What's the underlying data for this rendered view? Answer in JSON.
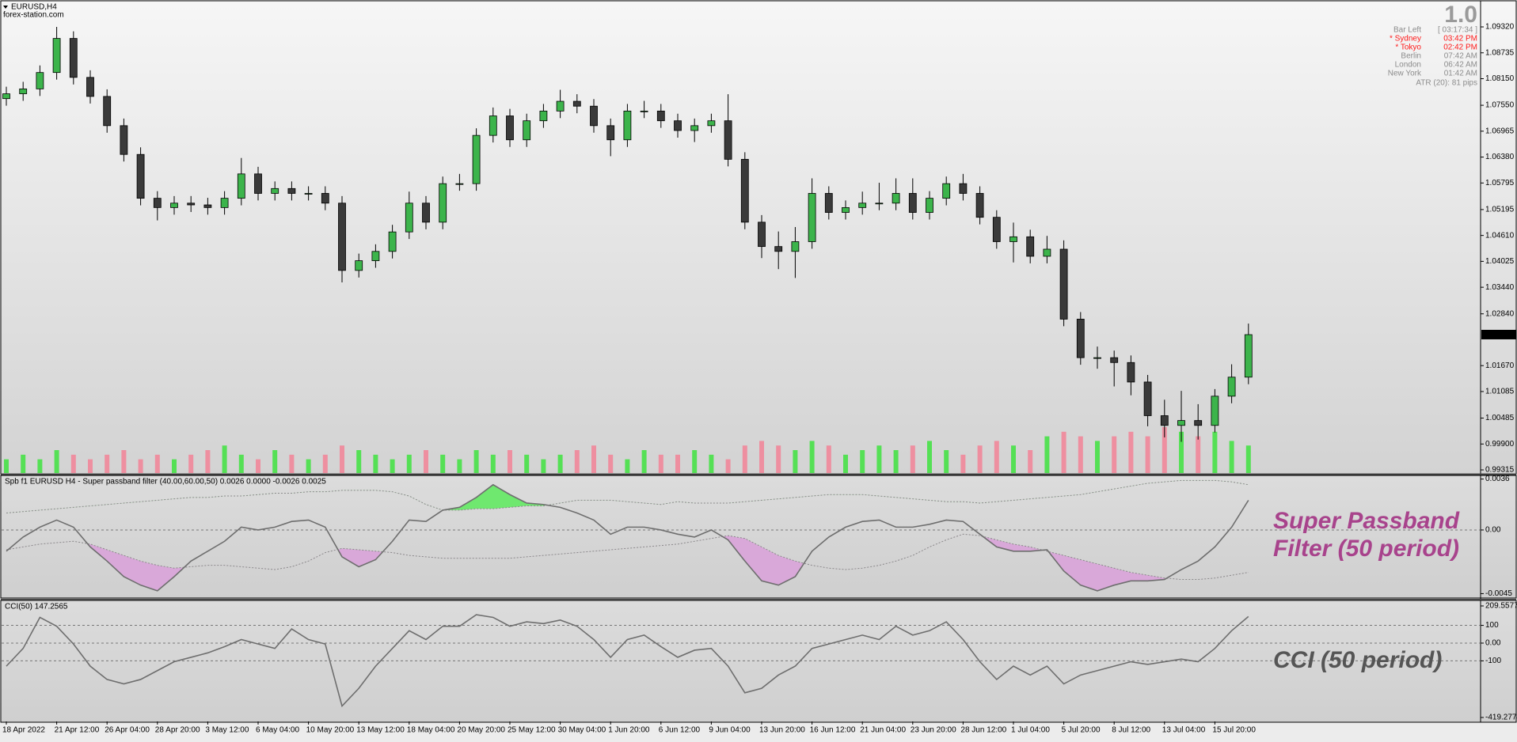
{
  "window": {
    "title": "EURUSD,H4",
    "watermark": "forex-station.com"
  },
  "info_box": {
    "version": "1.0",
    "rows": [
      {
        "label": "Bar Left",
        "time": "[ 03:17:34 ]",
        "color": "#8c8c8c"
      },
      {
        "label": "* Sydney",
        "time": "03:42 PM",
        "color": "#ff1a1a"
      },
      {
        "label": "* Tokyo",
        "time": "02:42 PM",
        "color": "#ff1a1a"
      },
      {
        "label": "Berlin",
        "time": "07:42 AM",
        "color": "#8c8c8c"
      },
      {
        "label": "London",
        "time": "06:42 AM",
        "color": "#8c8c8c"
      },
      {
        "label": "New York",
        "time": "01:42 AM",
        "color": "#8c8c8c"
      }
    ],
    "atr": "ATR (20): 81 pips"
  },
  "chart_data": [
    {
      "type": "candlestick",
      "up_color": "#3cb44b",
      "down_color": "#3a3a3a",
      "wick_color": "#000000",
      "ylim": [
        0.99244,
        1.09892
      ],
      "yticks": [
        {
          "value": 1.0932,
          "label": "1.09320"
        },
        1.08735,
        {
          "value": 1.0815,
          "label": "1.08150"
        },
        {
          "value": 1.0755,
          "label": "1.07550"
        },
        1.06965,
        {
          "value": 1.0638,
          "label": "1.06380"
        },
        1.05795,
        1.05195,
        {
          "value": 1.0461,
          "label": "1.04610"
        },
        1.04025,
        {
          "value": 1.0344,
          "label": "1.03440"
        },
        {
          "value": 1.0284,
          "label": "1.02840"
        },
        {
          "value": 1.0167,
          "label": "1.01670"
        },
        1.01085,
        1.00485,
        {
          "value": 0.999,
          "label": "0.99900"
        },
        0.99315
      ],
      "current_price": 1.02371,
      "open": [
        1.077,
        1.0781,
        1.0792,
        1.0829,
        1.0906,
        1.0818,
        1.0775,
        1.0709,
        1.0644,
        1.0545,
        1.0524,
        1.0534,
        1.053,
        1.0524,
        1.0545,
        1.06,
        1.0556,
        1.0567,
        1.0556,
        1.0556,
        1.0534,
        1.0382,
        1.0404,
        1.0425,
        1.0469,
        1.0534,
        1.0491,
        1.0578,
        1.0578,
        1.0687,
        1.0731,
        1.0677,
        1.072,
        1.0742,
        1.0764,
        1.0753,
        1.0709,
        1.0677,
        1.0742,
        1.0742,
        1.072,
        1.0698,
        1.0709,
        1.072,
        1.0633,
        1.0491,
        1.0436,
        1.0425,
        1.0447,
        1.0556,
        1.0513,
        1.0524,
        1.0534,
        1.0534,
        1.0556,
        1.0513,
        1.0545,
        1.0578,
        1.0556,
        1.0502,
        1.0447,
        1.0458,
        1.0414,
        1.043,
        1.0272,
        1.0185,
        1.0185,
        1.0174,
        1.013,
        1.0054,
        1.0032,
        1.0043,
        1.0032,
        1.0098,
        1.0141
      ],
      "high": [
        1.0797,
        1.0808,
        1.0845,
        1.0932,
        1.0922,
        1.0834,
        1.0791,
        1.0725,
        1.066,
        1.0561,
        1.055,
        1.055,
        1.0546,
        1.0561,
        1.0636,
        1.0616,
        1.0583,
        1.0583,
        1.0572,
        1.0572,
        1.055,
        1.042,
        1.0441,
        1.0485,
        1.056,
        1.055,
        1.0594,
        1.06,
        1.0703,
        1.075,
        1.0747,
        1.0736,
        1.0758,
        1.079,
        1.078,
        1.0769,
        1.0725,
        1.0758,
        1.0765,
        1.0758,
        1.0736,
        1.0725,
        1.0736,
        1.078,
        1.0649,
        1.0507,
        1.047,
        1.048,
        1.059,
        1.0572,
        1.054,
        1.056,
        1.058,
        1.059,
        1.059,
        1.0561,
        1.0594,
        1.06,
        1.0572,
        1.0518,
        1.049,
        1.0474,
        1.046,
        1.045,
        1.0288,
        1.021,
        1.0201,
        1.019,
        1.0146,
        1.009,
        1.011,
        1.008,
        1.0114,
        1.017,
        1.0262
      ],
      "low": [
        1.0754,
        1.0765,
        1.0776,
        1.0813,
        1.0802,
        1.0759,
        1.0693,
        1.0628,
        1.0529,
        1.0495,
        1.0508,
        1.0514,
        1.0508,
        1.0508,
        1.0529,
        1.054,
        1.054,
        1.054,
        1.054,
        1.0518,
        1.0355,
        1.0366,
        1.0388,
        1.0409,
        1.0453,
        1.0475,
        1.0475,
        1.0562,
        1.0562,
        1.0671,
        1.0661,
        1.0661,
        1.0704,
        1.0726,
        1.0737,
        1.0693,
        1.064,
        1.0661,
        1.0726,
        1.0704,
        1.0682,
        1.0672,
        1.0693,
        1.0617,
        1.0475,
        1.041,
        1.0385,
        1.0365,
        1.0431,
        1.0497,
        1.0497,
        1.0508,
        1.0518,
        1.0518,
        1.0497,
        1.0497,
        1.0529,
        1.054,
        1.0486,
        1.0431,
        1.04,
        1.0398,
        1.0398,
        1.0256,
        1.0169,
        1.016,
        1.012,
        1.01,
        1.003,
        1.0005,
        0.9995,
        1.0,
        1.0016,
        1.0082,
        1.0125
      ],
      "close": [
        1.0781,
        1.0792,
        1.0829,
        1.0906,
        1.0818,
        1.0775,
        1.0709,
        1.0644,
        1.0545,
        1.0524,
        1.0534,
        1.053,
        1.0524,
        1.0545,
        1.06,
        1.0556,
        1.0567,
        1.0556,
        1.0556,
        1.0534,
        1.0382,
        1.0404,
        1.0425,
        1.0469,
        1.0534,
        1.0491,
        1.0578,
        1.0578,
        1.0687,
        1.0731,
        1.0677,
        1.072,
        1.0742,
        1.0764,
        1.0753,
        1.0709,
        1.0677,
        1.0742,
        1.0742,
        1.072,
        1.0698,
        1.0709,
        1.072,
        1.0633,
        1.0491,
        1.0436,
        1.0425,
        1.0447,
        1.0556,
        1.0513,
        1.0524,
        1.0534,
        1.0534,
        1.0556,
        1.0513,
        1.0545,
        1.0578,
        1.0556,
        1.0502,
        1.0447,
        1.0458,
        1.0414,
        1.043,
        1.0272,
        1.0185,
        1.0185,
        1.0174,
        1.013,
        1.0054,
        1.0032,
        1.0043,
        1.0032,
        1.0098,
        1.0141,
        1.0237
      ],
      "volume": {
        "up_color": "#55e055",
        "down_color": "#ee8fa0",
        "values": [
          3,
          4,
          3,
          5,
          4,
          3,
          4,
          5,
          3,
          4,
          3,
          4,
          5,
          6,
          4,
          3,
          5,
          4,
          3,
          4,
          6,
          5,
          4,
          3,
          4,
          5,
          4,
          3,
          5,
          4,
          5,
          4,
          3,
          4,
          5,
          6,
          4,
          3,
          5,
          4,
          4,
          5,
          4,
          3,
          6,
          7,
          6,
          5,
          7,
          6,
          4,
          5,
          6,
          5,
          6,
          7,
          5,
          4,
          6,
          7,
          6,
          5,
          8,
          9,
          8,
          7,
          8,
          9,
          8,
          10,
          9,
          8,
          9,
          7,
          6
        ]
      }
    },
    {
      "type": "line",
      "title": "Spb f1 EURUSD H4 - Super passband filter (40.00,60.00,50) 0.0026 0.0000 -0.0026 0.0025",
      "annotation": [
        "Super Passband",
        "Filter (50 period)"
      ],
      "annotation_color": "#a8438c",
      "ylim": [
        -0.0047,
        0.0038
      ],
      "yticks": [
        0.0036,
        {
          "value": 0,
          "label": "0.00"
        },
        -0.0045
      ],
      "level_lines": true,
      "series": [
        {
          "color": "#6e6e6e",
          "values": [
            -0.0015,
            -0.0005,
            0.0002,
            0.0007,
            0.0002,
            -0.0012,
            -0.0022,
            -0.0033,
            -0.0039,
            -0.0043,
            -0.0033,
            -0.0022,
            -0.0015,
            -0.0008,
            0.0002,
            0,
            0.0002,
            0.0006,
            0.0007,
            0.0002,
            -0.0019,
            -0.0026,
            -0.0021,
            -0.0008,
            0.0007,
            0.0006,
            0.0014,
            0.0016,
            0.0023,
            0.0032,
            0.0025,
            0.0019,
            0.0018,
            0.0016,
            0.0012,
            0.0007,
            -0.0003,
            0.0002,
            0.0002,
            0,
            -0.0003,
            -0.0005,
            0,
            -0.0007,
            -0.0022,
            -0.0036,
            -0.0039,
            -0.0033,
            -0.0015,
            -0.0005,
            0.0002,
            0.0006,
            0.0007,
            0.0002,
            0.0002,
            0.0004,
            0.0007,
            0.0006,
            -0.0003,
            -0.0012,
            -0.0015,
            -0.0015,
            -0.0014,
            -0.0029,
            -0.0039,
            -0.0043,
            -0.0039,
            -0.0036,
            -0.0036,
            -0.0035,
            -0.0028,
            -0.0022,
            -0.0012,
            0.0002,
            0.0021
          ]
        },
        {
          "color": "#8a8a8a",
          "dashed": true,
          "fill": "above",
          "fill_color": "#6fe86f",
          "values": [
            0.0012,
            0.0013,
            0.0014,
            0.0015,
            0.0016,
            0.0017,
            0.0018,
            0.0019,
            0.002,
            0.0021,
            0.0022,
            0.0023,
            0.0023,
            0.0024,
            0.0024,
            0.0025,
            0.0026,
            0.0026,
            0.0027,
            0.0027,
            0.0028,
            0.0028,
            0.0028,
            0.0027,
            0.0024,
            0.0018,
            0.0014,
            0.0014,
            0.0015,
            0.0015,
            0.0016,
            0.0017,
            0.0017,
            0.0019,
            0.0021,
            0.0021,
            0.0021,
            0.002,
            0.0019,
            0.0018,
            0.002,
            0.0019,
            0.0019,
            0.0019,
            0.002,
            0.0021,
            0.0022,
            0.0023,
            0.0024,
            0.0025,
            0.0025,
            0.0025,
            0.0024,
            0.0023,
            0.0022,
            0.0021,
            0.002,
            0.002,
            0.0019,
            0.002,
            0.0021,
            0.0022,
            0.0023,
            0.0024,
            0.0025,
            0.0027,
            0.0029,
            0.0031,
            0.0033,
            0.0034,
            0.0035,
            0.0035,
            0.0035,
            0.0034,
            0.0032
          ]
        },
        {
          "color": "#8a8a8a",
          "dashed": true,
          "fill": "below",
          "fill_color": "#d9a8d9",
          "values": [
            -0.0014,
            -0.0012,
            -0.001,
            -0.0009,
            -0.0008,
            -0.001,
            -0.0014,
            -0.0018,
            -0.0022,
            -0.0025,
            -0.0027,
            -0.0026,
            -0.0025,
            -0.0025,
            -0.0026,
            -0.0027,
            -0.0028,
            -0.0026,
            -0.0022,
            -0.0016,
            -0.0013,
            -0.0014,
            -0.0015,
            -0.0016,
            -0.0018,
            -0.0019,
            -0.002,
            -0.002,
            -0.002,
            -0.002,
            -0.002,
            -0.0019,
            -0.0018,
            -0.0017,
            -0.0016,
            -0.0015,
            -0.0014,
            -0.0013,
            -0.0012,
            -0.0011,
            -0.001,
            -0.0008,
            -0.0006,
            -0.0004,
            -0.0006,
            -0.0012,
            -0.0018,
            -0.0022,
            -0.0025,
            -0.0027,
            -0.0028,
            -0.0027,
            -0.0025,
            -0.0022,
            -0.0018,
            -0.0012,
            -0.0007,
            -0.0003,
            -0.0004,
            -0.0007,
            -0.001,
            -0.0012,
            -0.0015,
            -0.0018,
            -0.0021,
            -0.0024,
            -0.0027,
            -0.003,
            -0.0032,
            -0.0034,
            -0.0035,
            -0.0035,
            -0.0034,
            -0.0032,
            -0.003
          ]
        }
      ]
    },
    {
      "type": "line",
      "title": "CCI(50) 147.2565",
      "annotation": [
        "CCI (50 period)"
      ],
      "annotation_color": "#555555",
      "ylim": [
        -441.6,
        236.3
      ],
      "yticks": [
        209.5577,
        100,
        {
          "value": 0,
          "label": "0.00"
        },
        -100,
        -419.2774
      ],
      "level_lines": true,
      "categories": [
        "18 Apr 2022",
        null,
        null,
        "21 Apr 12:00",
        null,
        null,
        "26 Apr 04:00",
        null,
        null,
        "28 Apr 20:00",
        null,
        null,
        "3 May 12:00",
        null,
        null,
        "6 May 04:00",
        null,
        null,
        "10 May 20:00",
        null,
        null,
        "13 May 12:00",
        null,
        null,
        "18 May 04:00",
        null,
        null,
        "20 May 20:00",
        null,
        null,
        "25 May 12:00",
        null,
        null,
        "30 May 04:00",
        null,
        null,
        "1 Jun 20:00",
        null,
        null,
        "6 Jun 12:00",
        null,
        null,
        "9 Jun 04:00",
        null,
        null,
        "13 Jun 20:00",
        null,
        null,
        "16 Jun 12:00",
        null,
        null,
        "21 Jun 04:00",
        null,
        null,
        "23 Jun 20:00",
        null,
        null,
        "28 Jun 12:00",
        null,
        null,
        "1 Jul 04:00",
        null,
        null,
        "5 Jul 20:00",
        null,
        null,
        "8 Jul 12:00",
        null,
        null,
        "13 Jul 04:00",
        null,
        null,
        "15 Jul 20:00",
        null,
        null
      ],
      "series": [
        {
          "color": "#6e6e6e",
          "values": [
            -130,
            -30,
            145,
            95,
            -5,
            -130,
            -205,
            -230,
            -205,
            -155,
            -105,
            -80,
            -55,
            -20,
            20,
            -5,
            -30,
            80,
            20,
            -5,
            -355,
            -255,
            -130,
            -30,
            70,
            20,
            95,
            95,
            160,
            145,
            95,
            120,
            110,
            130,
            95,
            20,
            -80,
            20,
            45,
            -20,
            -80,
            -40,
            -30,
            -130,
            -280,
            -255,
            -180,
            -130,
            -30,
            -5,
            20,
            45,
            20,
            95,
            45,
            70,
            120,
            20,
            -105,
            -205,
            -130,
            -180,
            -130,
            -230,
            -180,
            -155,
            -130,
            -105,
            -120,
            -105,
            -90,
            -105,
            -30,
            70,
            150
          ]
        }
      ]
    }
  ]
}
